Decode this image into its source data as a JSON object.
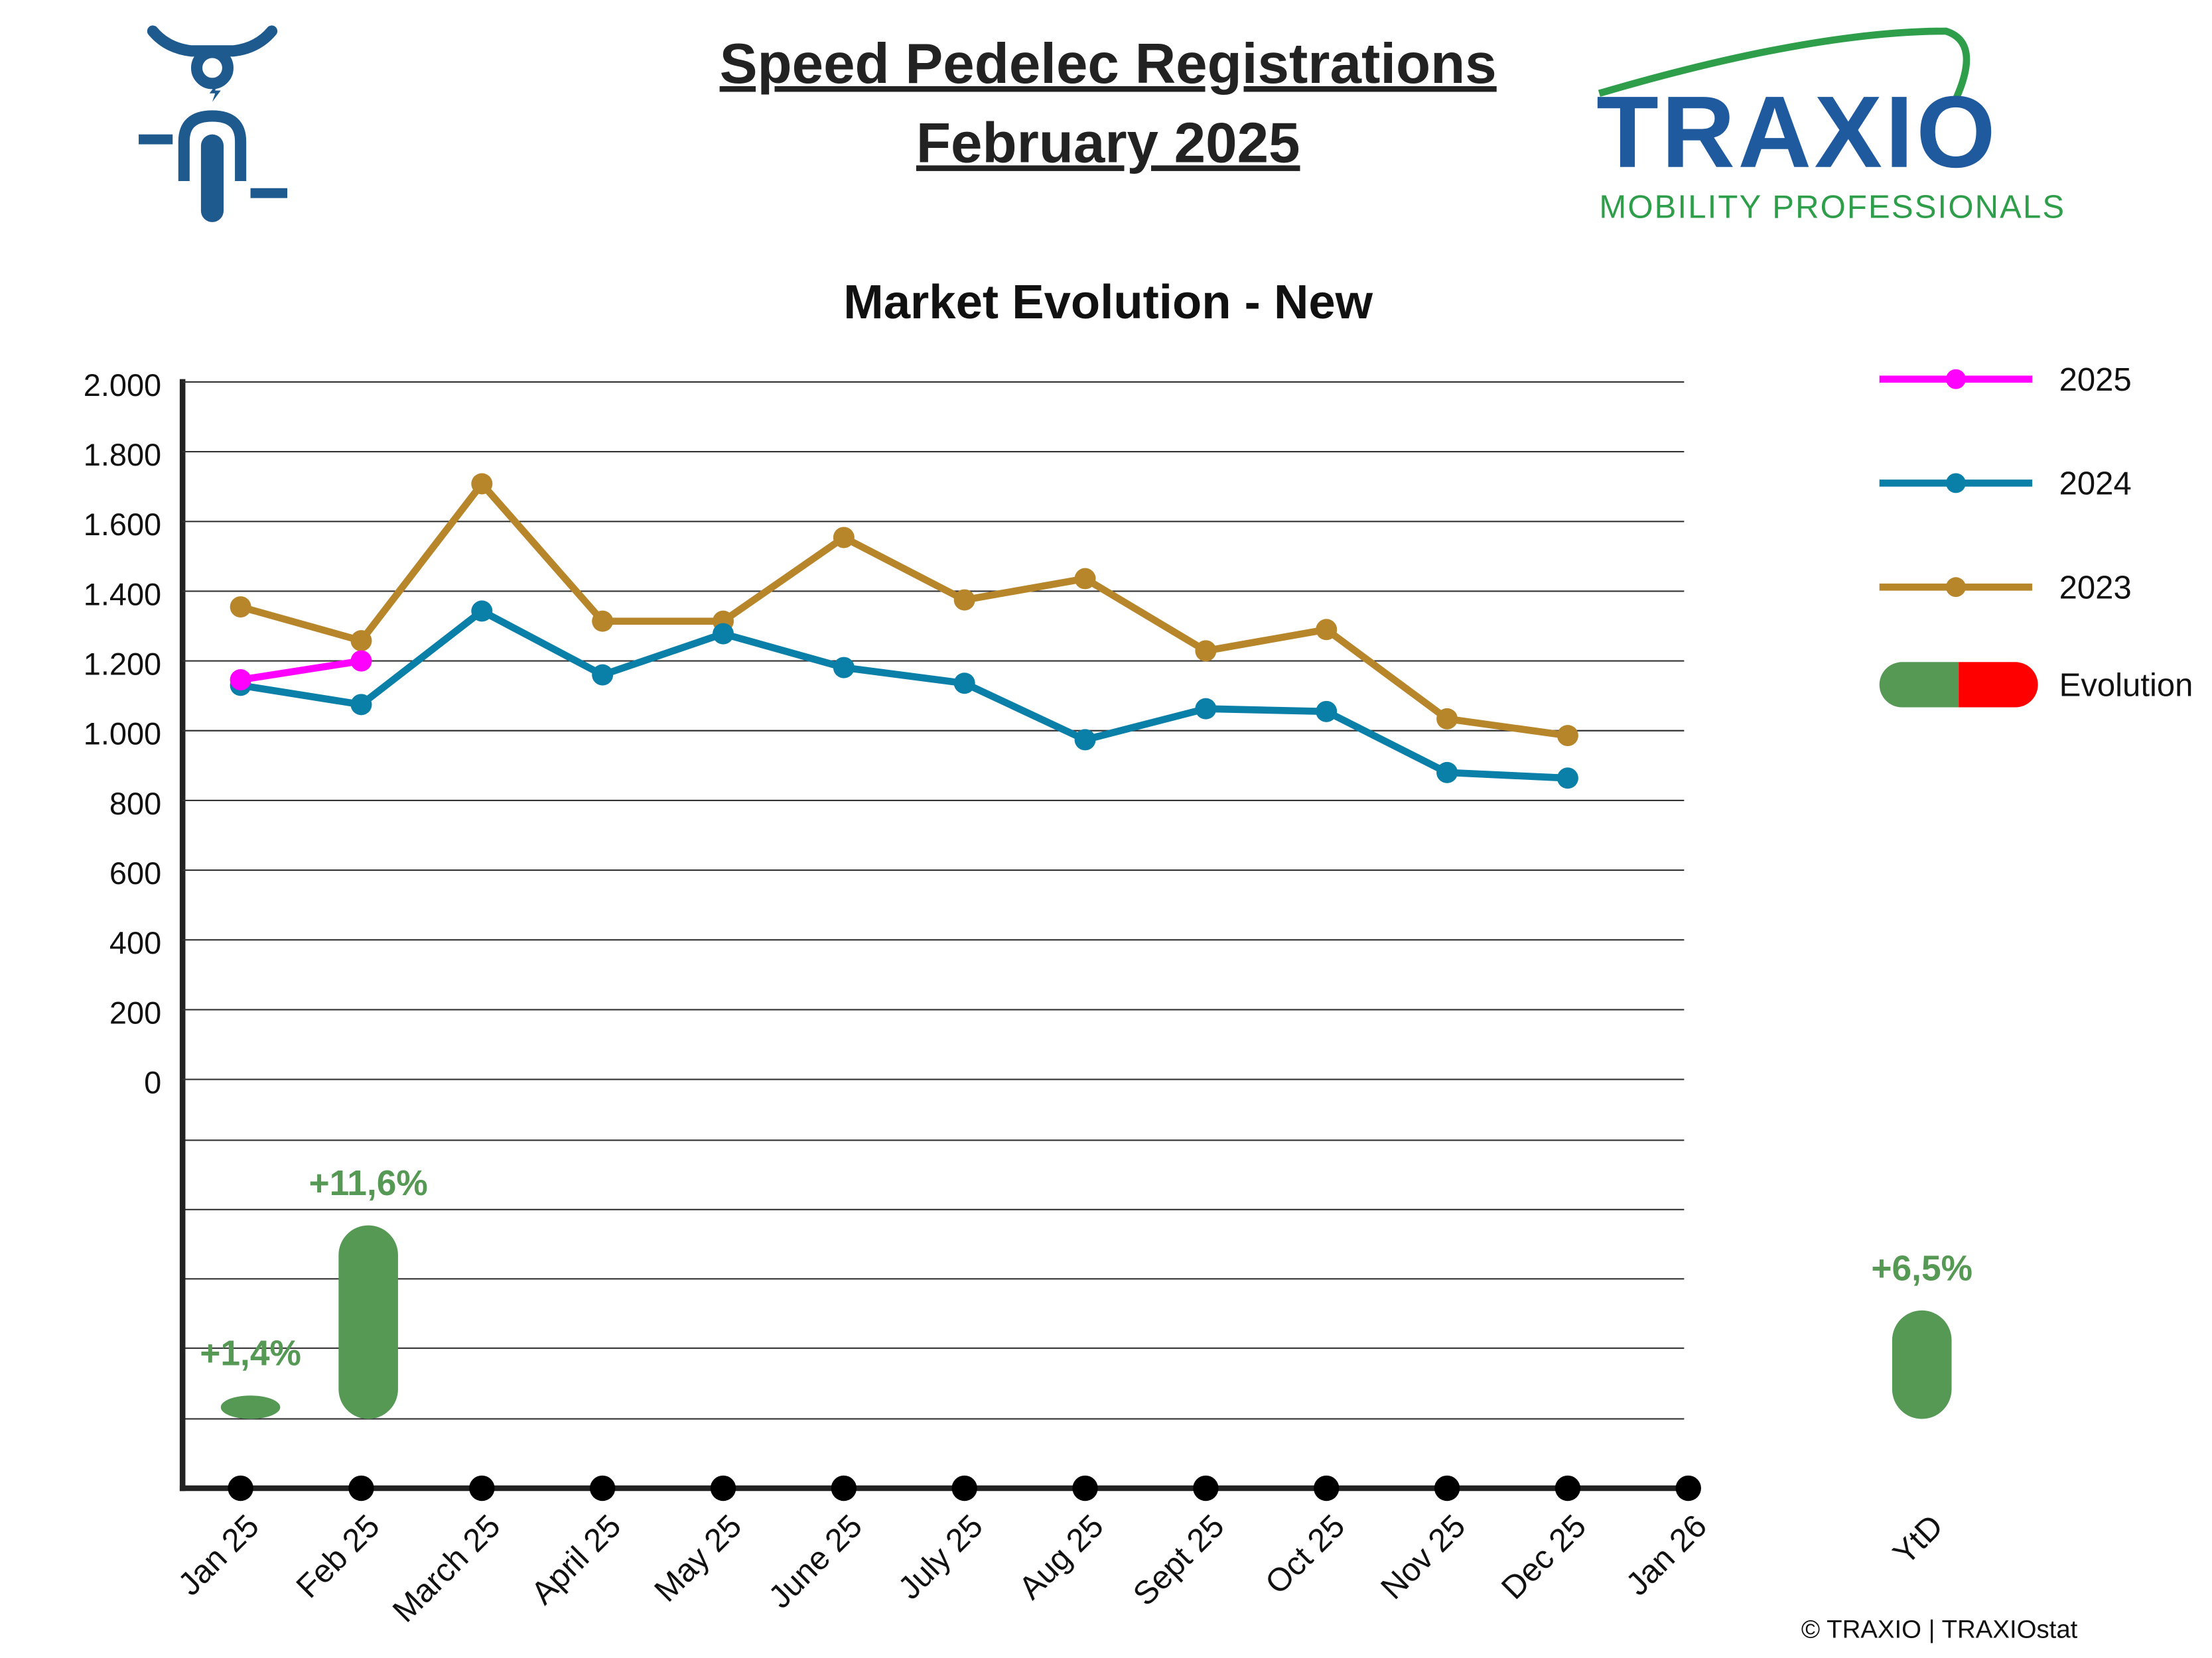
{
  "header": {
    "title": "Speed Pedelec Registrations",
    "subtitle": "February 2025"
  },
  "logo": {
    "name": "TRAXIO",
    "tagline": "MOBILITY PROFESSIONALS"
  },
  "footer": "© TRAXIO | TRAXIOstat",
  "chart_data": {
    "type": "line",
    "title": "Market Evolution - New",
    "categories": [
      "Jan 25",
      "Feb 25",
      "March 25",
      "April 25",
      "May 25",
      "June 25",
      "July 25",
      "Aug 25",
      "Sept 25",
      "Oct 25",
      "Nov 25",
      "Dec 25",
      "Jan 26"
    ],
    "ylim": [
      0,
      2000
    ],
    "yticks": [
      {
        "value": 0,
        "label": "0"
      },
      {
        "value": 200,
        "label": "200"
      },
      {
        "value": 400,
        "label": "400"
      },
      {
        "value": 600,
        "label": "600"
      },
      {
        "value": 800,
        "label": "800"
      },
      {
        "value": 1000,
        "label": "1.000"
      },
      {
        "value": 1200,
        "label": "1.200"
      },
      {
        "value": 1400,
        "label": "1.400"
      },
      {
        "value": 1600,
        "label": "1.600"
      },
      {
        "value": 1800,
        "label": "1.800"
      },
      {
        "value": 2000,
        "label": "2.000"
      }
    ],
    "grid": true,
    "series": [
      {
        "name": "2025",
        "color": "#ff00ff",
        "values": [
          1146,
          1200,
          null,
          null,
          null,
          null,
          null,
          null,
          null,
          null,
          null,
          null,
          null
        ]
      },
      {
        "name": "2024",
        "color": "#0a7fa8",
        "values": [
          1130,
          1075,
          1343,
          1160,
          1278,
          1181,
          1136,
          974,
          1063,
          1055,
          880,
          864,
          null
        ]
      },
      {
        "name": "2023",
        "color": "#b8862a",
        "values": [
          1355,
          1258,
          1708,
          1314,
          1314,
          1554,
          1375,
          1436,
          1229,
          1290,
          1034,
          986,
          null
        ]
      }
    ],
    "evolution": {
      "name": "Evolution",
      "color": "#559955",
      "negative_color": "#ff0000",
      "values": [
        1.4,
        11.6
      ],
      "value_labels": [
        "+1,4%",
        "+11,6%"
      ],
      "ytd_category": "YtD",
      "ytd_value": 6.5,
      "ytd_label": "+6,5%"
    },
    "y2lim": [
      0,
      16.7
    ]
  }
}
